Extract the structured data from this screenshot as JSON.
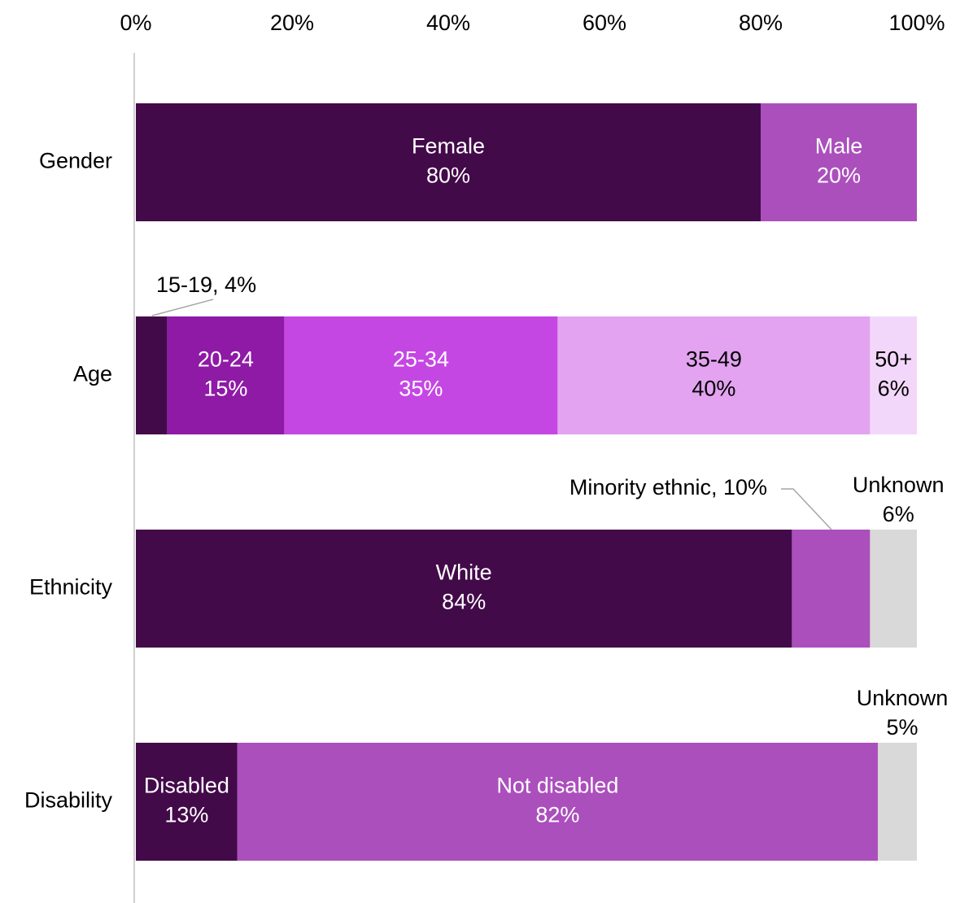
{
  "chart_data": {
    "type": "stacked-bar-horizontal",
    "xlim": [
      0,
      100
    ],
    "xticks": [
      {
        "value": 0,
        "label": "0%"
      },
      {
        "value": 20,
        "label": "20%"
      },
      {
        "value": 40,
        "label": "40%"
      },
      {
        "value": 60,
        "label": "60%"
      },
      {
        "value": 80,
        "label": "80%"
      },
      {
        "value": 100,
        "label": "100%"
      }
    ],
    "rows": [
      {
        "category": "Gender",
        "segments": [
          {
            "name": "Female",
            "value": 80,
            "value_label": "80%",
            "color": "#430a4a",
            "text_color": "#ffffff",
            "label_position": "inside"
          },
          {
            "name": "Male",
            "value": 20,
            "value_label": "20%",
            "color": "#ab4fbd",
            "text_color": "#ffffff",
            "label_position": "inside"
          }
        ]
      },
      {
        "category": "Age",
        "segments": [
          {
            "label": "15-19, 4%",
            "value": 4,
            "color": "#430a4a",
            "text_color": "#000000",
            "label_position": "callout"
          },
          {
            "name": "20-24",
            "value": 15,
            "value_label": "15%",
            "color": "#8e1aa6",
            "text_color": "#ffffff",
            "label_position": "inside"
          },
          {
            "name": "25-34",
            "value": 35,
            "value_label": "35%",
            "color": "#c547e3",
            "text_color": "#ffffff",
            "label_position": "inside"
          },
          {
            "name": "35-49",
            "value": 40,
            "value_label": "40%",
            "color": "#e3a3f0",
            "text_color": "#000000",
            "label_position": "inside"
          },
          {
            "name": "50+",
            "value": 6,
            "value_label": "6%",
            "color": "#f3d7fa",
            "text_color": "#000000",
            "label_position": "inside"
          }
        ]
      },
      {
        "category": "Ethnicity",
        "segments": [
          {
            "name": "White",
            "value": 84,
            "value_label": "84%",
            "color": "#430a4a",
            "text_color": "#ffffff",
            "label_position": "inside"
          },
          {
            "label": "Minority ethnic, 10%",
            "value": 10,
            "color": "#ab4fbd",
            "text_color": "#000000",
            "label_position": "callout"
          },
          {
            "name": "Unknown",
            "value": 6,
            "value_label": "6%",
            "color": "#d9d9d9",
            "text_color": "#000000",
            "label_position": "above"
          }
        ]
      },
      {
        "category": "Disability",
        "segments": [
          {
            "name": "Disabled",
            "value": 13,
            "value_label": "13%",
            "color": "#430a4a",
            "text_color": "#ffffff",
            "label_position": "inside"
          },
          {
            "name": "Not disabled",
            "value": 82,
            "value_label": "82%",
            "color": "#ab4fbd",
            "text_color": "#ffffff",
            "label_position": "inside"
          },
          {
            "name": "Unknown",
            "value": 5,
            "value_label": "5%",
            "color": "#d9d9d9",
            "text_color": "#000000",
            "label_position": "above"
          }
        ]
      }
    ]
  }
}
